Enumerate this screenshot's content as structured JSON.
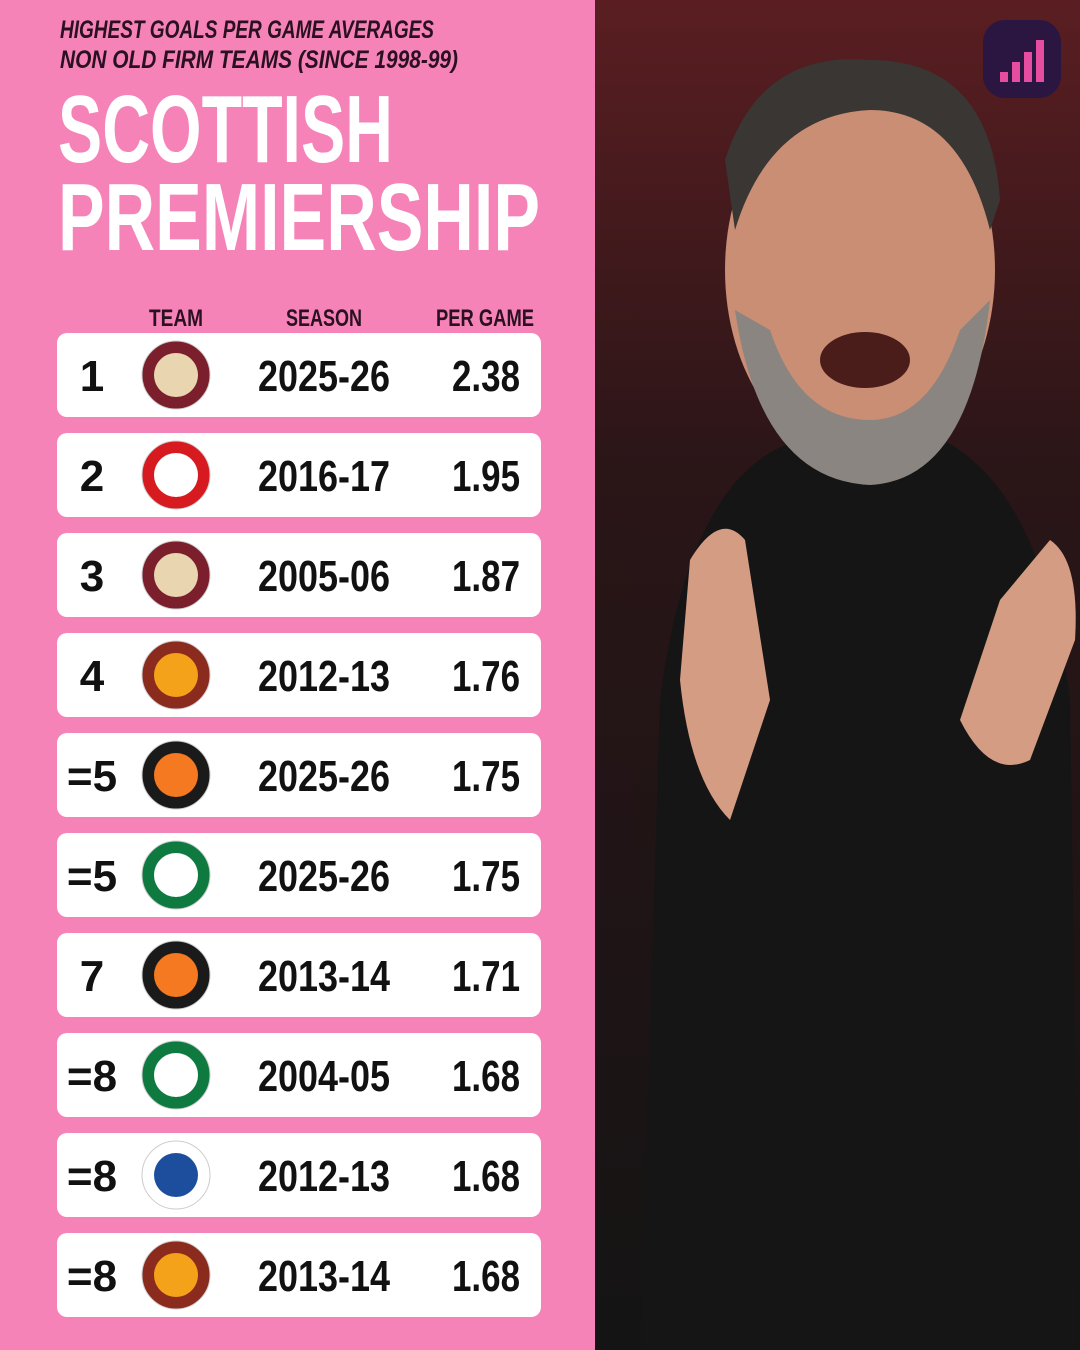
{
  "header": {
    "subtitle": [
      "HIGHEST GOALS PER GAME AVERAGES",
      "NON OLD FIRM TEAMS (SINCE 1998-99)"
    ],
    "title": [
      "SCOTTISH",
      "PREMIERSHIP"
    ]
  },
  "table": {
    "columns": [
      "TEAM",
      "SEASON",
      "PER GAME"
    ],
    "rows": [
      {
        "rank": "1",
        "season": "2025-26",
        "per_game": "2.38"
      },
      {
        "rank": "2",
        "season": "2016-17",
        "per_game": "1.95"
      },
      {
        "rank": "3",
        "season": "2005-06",
        "per_game": "1.87"
      },
      {
        "rank": "4",
        "season": "2012-13",
        "per_game": "1.76"
      },
      {
        "rank": "=5",
        "season": "2025-26",
        "per_game": "1.75"
      },
      {
        "rank": "=5",
        "season": "2025-26",
        "per_game": "1.75"
      },
      {
        "rank": "7",
        "season": "2013-14",
        "per_game": "1.71"
      },
      {
        "rank": "=8",
        "season": "2004-05",
        "per_game": "1.68"
      },
      {
        "rank": "=8",
        "season": "2012-13",
        "per_game": "1.68"
      },
      {
        "rank": "=8",
        "season": "2013-14",
        "per_game": "1.68"
      }
    ]
  }
}
